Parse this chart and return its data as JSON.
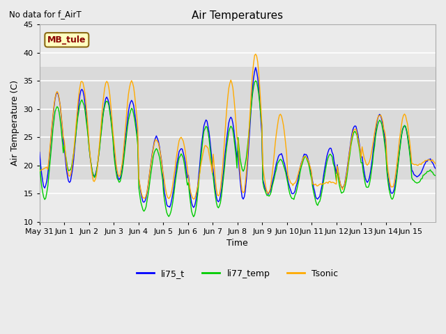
{
  "title": "Air Temperatures",
  "xlabel": "Time",
  "ylabel": "Air Temperature (C)",
  "top_left_text": "No data for f_AirT",
  "annotation_text": "MB_tule",
  "ylim": [
    10,
    45
  ],
  "shaded_band": [
    17.5,
    37.5
  ],
  "line_colors": {
    "li75_t": "#0000ff",
    "li77_temp": "#00cc00",
    "Tsonic": "#ffaa00"
  },
  "legend_labels": [
    "li75_t",
    "li77_temp",
    "Tsonic"
  ],
  "x_tick_labels": [
    "May 31",
    "Jun 1",
    "Jun 2",
    "Jun 3",
    "Jun 4",
    "Jun 5",
    "Jun 6",
    "Jun 7",
    "Jun 8",
    "Jun 9",
    "Jun 10",
    "Jun 11",
    "Jun 12",
    "Jun 13",
    "Jun 14",
    "Jun 15"
  ],
  "background_color": "#ebebeb",
  "plot_bg_color": "#ebebeb",
  "grid_color": "#ffffff",
  "day_min_75": [
    16,
    17,
    18,
    17.5,
    13.5,
    12.5,
    12.5,
    13.5,
    14,
    15,
    15,
    14,
    16,
    17,
    15,
    18
  ],
  "day_max_75": [
    33,
    33.5,
    32,
    31.5,
    25,
    23,
    28,
    28.5,
    37,
    22,
    22,
    23,
    27,
    29,
    27,
    21
  ],
  "day_min_77": [
    14,
    19,
    18,
    17,
    12,
    11,
    11,
    12.5,
    19,
    14.5,
    14,
    13,
    15,
    16,
    14,
    17
  ],
  "day_max_77": [
    30.5,
    31.5,
    31.5,
    30,
    23,
    22,
    27,
    27,
    35,
    21,
    21.5,
    22,
    26,
    28,
    27,
    19
  ],
  "day_min_sonic": [
    17,
    18,
    17,
    18,
    14,
    14,
    14,
    14.5,
    15,
    15,
    16.5,
    16.5,
    16,
    20,
    16,
    20
  ],
  "day_max_sonic": [
    33,
    35,
    35,
    35,
    24.5,
    25,
    23.5,
    35,
    40,
    29,
    21.5,
    17,
    26.5,
    29,
    29,
    21
  ]
}
